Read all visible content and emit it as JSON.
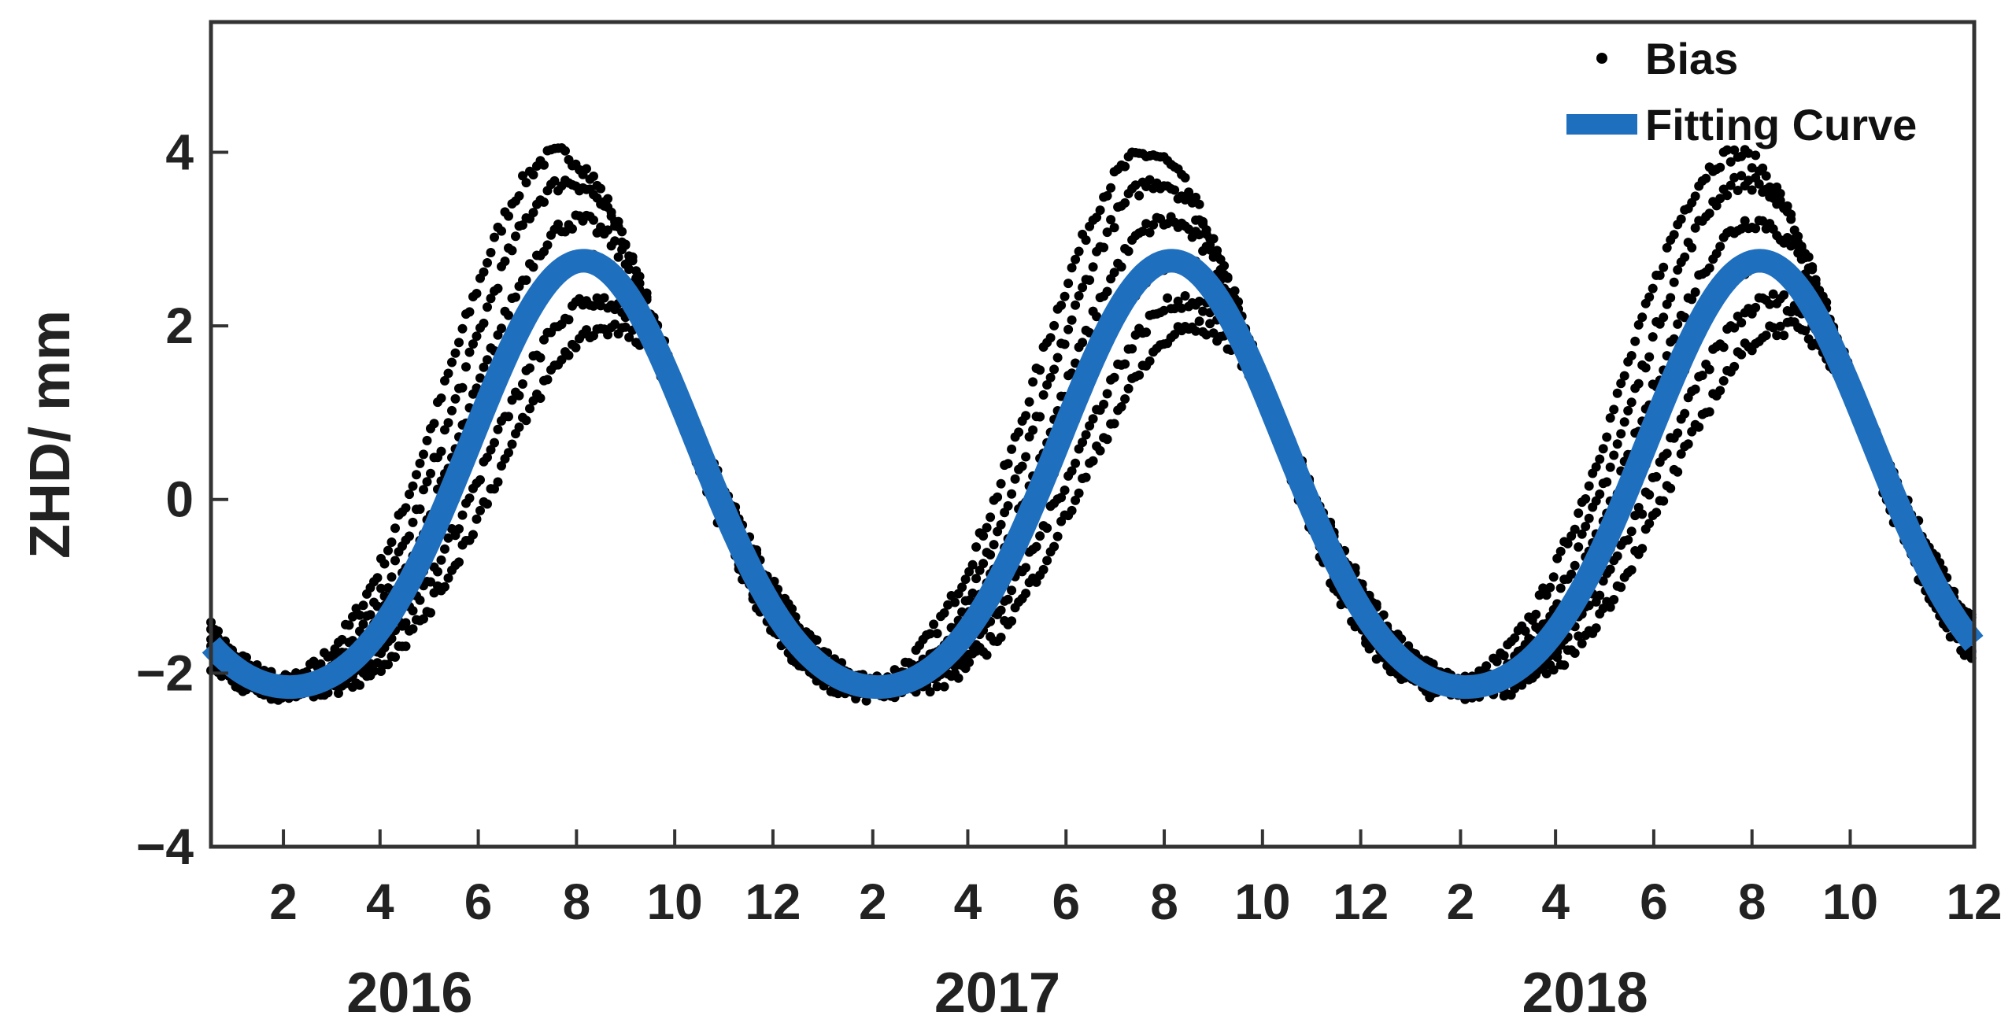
{
  "chart_data": {
    "type": "scatter",
    "title": "",
    "xlabel": "",
    "ylabel": "ZHD/ mm",
    "ylim": [
      -4,
      5.5
    ],
    "xlim": [
      "2016-01-01",
      "2018-12-31"
    ],
    "yticks": [
      -4,
      -2,
      0,
      2,
      4
    ],
    "ytick_labels": [
      "−4",
      "−2",
      "0",
      "2",
      "4"
    ],
    "xtick_labels": [
      "2",
      "4",
      "6",
      "8",
      "10",
      "12",
      "2",
      "4",
      "6",
      "8",
      "10",
      "12",
      "2",
      "4",
      "6",
      "8",
      "10",
      "12"
    ],
    "xtick_dates": [
      "2016-02-15",
      "2016-04-15",
      "2016-06-15",
      "2016-08-15",
      "2016-10-15",
      "2016-12-15",
      "2017-02-15",
      "2017-04-15",
      "2017-06-15",
      "2017-08-15",
      "2017-10-15",
      "2017-12-15",
      "2018-02-15",
      "2018-04-15",
      "2018-06-15",
      "2018-08-15",
      "2018-10-15",
      "2018-12-31"
    ],
    "year_labels": [
      {
        "label": "2016",
        "date": "2016-07-01"
      },
      {
        "label": "2017",
        "date": "2017-07-01"
      },
      {
        "label": "2018",
        "date": "2018-07-01"
      }
    ],
    "grid": false,
    "legend_position": "top-right",
    "series": [
      {
        "name": "Bias",
        "kind": "scatter",
        "color": "#000000",
        "bands": [
          {
            "offset": 0.9,
            "amp_scale": 1.25
          },
          {
            "offset": 0.6,
            "amp_scale": 1.2
          },
          {
            "offset": 0.3,
            "amp_scale": 1.1
          },
          {
            "offset": 0.0,
            "amp_scale": 1.0
          },
          {
            "offset": -0.3,
            "amp_scale": 0.9
          },
          {
            "offset": -0.6,
            "amp_scale": 0.85
          }
        ]
      },
      {
        "name": "Fitting Curve",
        "kind": "line",
        "color": "#1f6fbf",
        "amplitude": 2.75,
        "peak_month": 8.6,
        "mean": 0.0
      }
    ]
  }
}
